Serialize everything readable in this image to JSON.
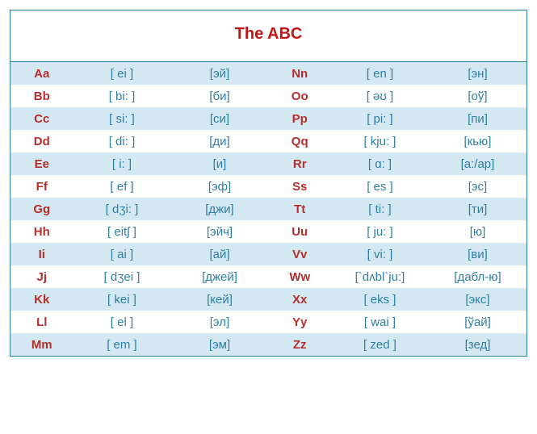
{
  "title": "The ABC",
  "colors": {
    "border": "#2f7ea3",
    "title": "#c41414",
    "letter": "#b52e2e",
    "phon_text": "#2f7ea3",
    "row_band": "#d3e8f0",
    "row_plain": "#ffffff"
  },
  "font": {
    "title_size": 20,
    "cell_size": 15
  },
  "rows": [
    {
      "l1": "Aa",
      "p1": "[ ei ]",
      "c1": "[эй]",
      "l2": "Nn",
      "p2": "[ en ]",
      "c2": "[эн]"
    },
    {
      "l1": "Bb",
      "p1": "[ bi: ]",
      "c1": "[би]",
      "l2": "Oo",
      "p2": "[ əʊ ]",
      "c2": "[оў]"
    },
    {
      "l1": "Cc",
      "p1": "[ si: ]",
      "c1": "[си]",
      "l2": "Pp",
      "p2": "[ pi: ]",
      "c2": "[пи]"
    },
    {
      "l1": "Dd",
      "p1": "[ di: ]",
      "c1": "[ди]",
      "l2": "Qq",
      "p2": "[ kju: ]",
      "c2": "[кью]"
    },
    {
      "l1": "Ee",
      "p1": "[ i: ]",
      "c1": "[и]",
      "l2": "Rr",
      "p2": "[ ɑ: ]",
      "c2": "[а:/ар]"
    },
    {
      "l1": "Ff",
      "p1": "[ ef ]",
      "c1": "[эф]",
      "l2": "Ss",
      "p2": "[ es ]",
      "c2": "[эс]"
    },
    {
      "l1": "Gg",
      "p1": "[ dʒi: ]",
      "c1": "[джи]",
      "l2": "Tt",
      "p2": "[ ti: ]",
      "c2": "[ти]"
    },
    {
      "l1": "Hh",
      "p1": "[ eitʃ ]",
      "c1": "[эйч]",
      "l2": "Uu",
      "p2": "[ ju: ]",
      "c2": "[ю]"
    },
    {
      "l1": "Ii",
      "p1": "[ ai ]",
      "c1": "[ай]",
      "l2": "Vv",
      "p2": "[ vi: ]",
      "c2": "[ви]"
    },
    {
      "l1": "Jj",
      "p1": "[ dʒei ]",
      "c1": "[джей]",
      "l2": "Ww",
      "p2": "[`dʌbl`ju:]",
      "c2": "[дабл-ю]"
    },
    {
      "l1": "Kk",
      "p1": "[ kei ]",
      "c1": "[кей]",
      "l2": "Xx",
      "p2": "[ eks ]",
      "c2": "[экс]"
    },
    {
      "l1": "Ll",
      "p1": "[ el ]",
      "c1": "[эл]",
      "l2": "Yy",
      "p2": "[ wai ]",
      "c2": "[ўай]"
    },
    {
      "l1": "Mm",
      "p1": "[ em ]",
      "c1": "[эм]",
      "l2": "Zz",
      "p2": "[ zed ]",
      "c2": "[зед]"
    }
  ]
}
